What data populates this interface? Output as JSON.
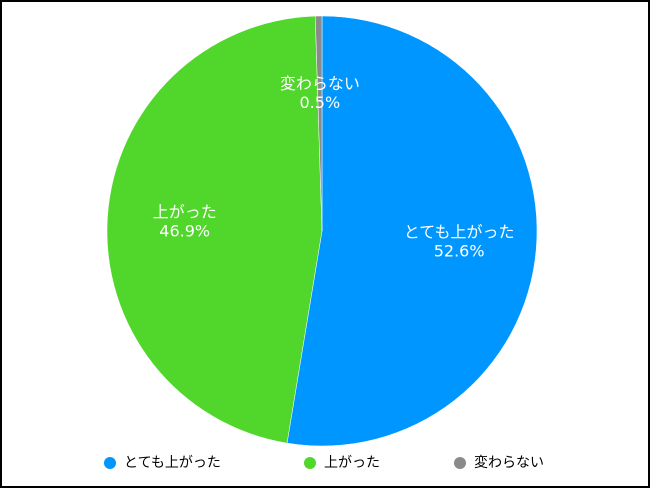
{
  "chart_data": {
    "type": "pie",
    "categories": [
      "とても上がった",
      "上がった",
      "変わらない"
    ],
    "values": [
      52.6,
      46.9,
      0.5
    ],
    "value_labels": [
      "52.6%",
      "46.9%",
      "0.5%"
    ],
    "colors": [
      "#0096ff",
      "#51d62b",
      "#8a8a8a"
    ],
    "legend": "bottom"
  }
}
